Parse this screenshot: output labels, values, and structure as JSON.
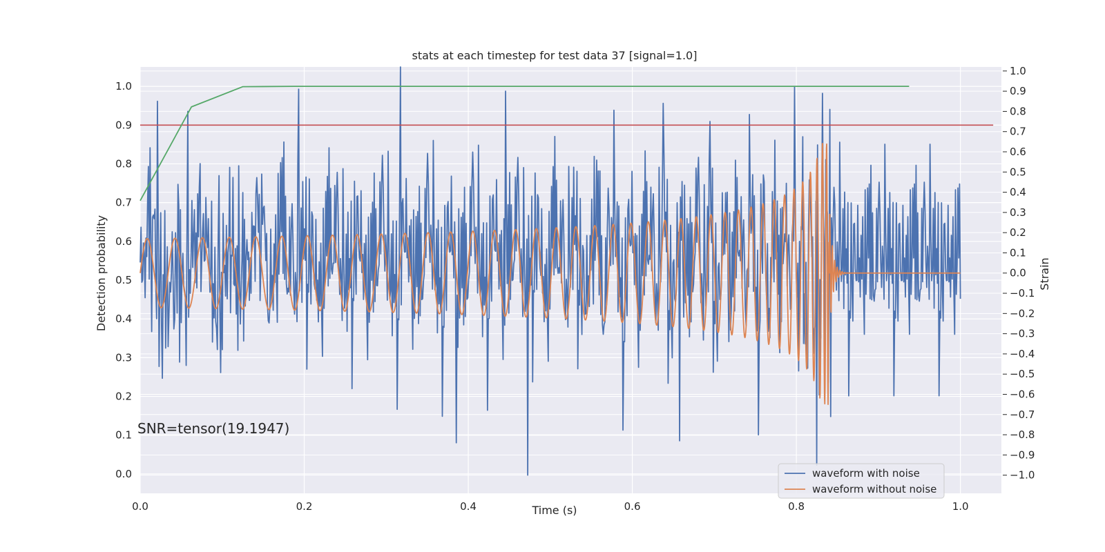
{
  "chart_data": {
    "type": "line",
    "title": "stats at each timestep for test data 37 [signal=1.0]",
    "xlabel": "Time (s)",
    "ylabel": "Detection probability",
    "y2label": "Strain",
    "xlim": [
      0.0,
      1.05
    ],
    "ylim": [
      -0.05,
      1.05
    ],
    "y2lim": [
      -1.09,
      1.02
    ],
    "xticks": [
      "0.0",
      "0.2",
      "0.4",
      "0.6",
      "0.8",
      "1.0"
    ],
    "xtick_values": [
      0.0,
      0.2,
      0.4,
      0.6,
      0.8,
      1.0
    ],
    "yticks": [
      "0.0",
      "0.1",
      "0.2",
      "0.3",
      "0.4",
      "0.5",
      "0.6",
      "0.7",
      "0.8",
      "0.9",
      "1.0"
    ],
    "ytick_values": [
      0.0,
      0.1,
      0.2,
      0.3,
      0.4,
      0.5,
      0.6,
      0.7,
      0.8,
      0.9,
      1.0
    ],
    "y2ticks": [
      "−1.0",
      "−0.9",
      "−0.8",
      "−0.7",
      "−0.6",
      "−0.5",
      "−0.4",
      "−0.3",
      "−0.2",
      "−0.1",
      "0.0",
      "0.1",
      "0.2",
      "0.3",
      "0.4",
      "0.5",
      "0.6",
      "0.7",
      "0.8",
      "0.9",
      "1.0"
    ],
    "y2tick_values": [
      -1.0,
      -0.9,
      -0.8,
      -0.7,
      -0.6,
      -0.5,
      -0.4,
      -0.3,
      -0.2,
      -0.1,
      0.0,
      0.1,
      0.2,
      0.3,
      0.4,
      0.5,
      0.6,
      0.7,
      0.8,
      0.9,
      1.0
    ],
    "grid": true,
    "legend_position": "lower-right",
    "annotation": "SNR=tensor(19.1947)",
    "threshold": {
      "y": 0.9,
      "x": [
        0.0,
        1.04
      ],
      "color": "#c44e52"
    },
    "detection_probability": {
      "color": "#55a868",
      "x": [
        0.0,
        0.0625,
        0.125,
        0.1875,
        0.25,
        0.3125,
        0.375,
        0.4375,
        0.5,
        0.5625,
        0.625,
        0.6875,
        0.75,
        0.8125,
        0.875,
        0.9375
      ],
      "y": [
        0.705,
        0.947,
        0.999,
        1.0,
        1.0,
        1.0,
        1.0,
        1.0,
        1.0,
        1.0,
        1.0,
        1.0,
        1.0,
        1.0,
        1.0,
        1.0
      ]
    },
    "series": [
      {
        "name": "waveform with noise",
        "color": "#4c72b0",
        "x_range": [
          0.0,
          1.0
        ],
        "n_points": 1000,
        "values": "generated",
        "peaks": [
          {
            "x": 0.012,
            "y": 0.62
          },
          {
            "x": 0.021,
            "y": 0.85
          },
          {
            "x": 0.058,
            "y": 0.8
          },
          {
            "x": 0.193,
            "y": 0.91
          },
          {
            "x": 0.317,
            "y": 1.02
          },
          {
            "x": 0.385,
            "y": -0.84
          },
          {
            "x": 0.445,
            "y": 0.9
          },
          {
            "x": 0.472,
            "y": -1.0
          },
          {
            "x": 0.638,
            "y": 0.84
          },
          {
            "x": 0.658,
            "y": -0.83
          },
          {
            "x": 0.695,
            "y": 0.75
          },
          {
            "x": 0.825,
            "y": -0.95
          },
          {
            "x": 0.841,
            "y": 0.81
          },
          {
            "x": 0.842,
            "y": -0.71
          }
        ]
      },
      {
        "name": "waveform without noise",
        "color": "#dd8452",
        "x_range": [
          0.0,
          1.0
        ],
        "chirp_merger_time": 0.84,
        "peak_strain": 0.65,
        "min_strain": -0.71,
        "start_amplitude": 0.17,
        "post_merger_value": 0.0
      }
    ]
  }
}
